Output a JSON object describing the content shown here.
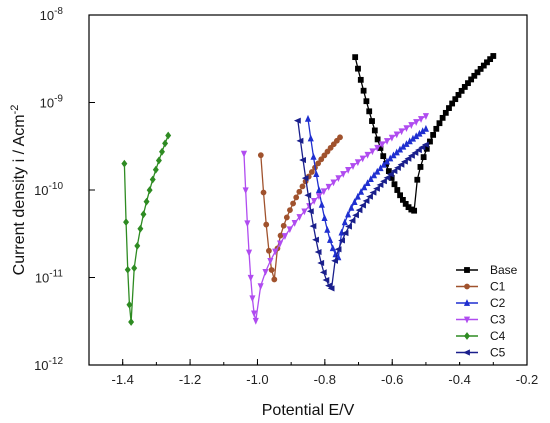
{
  "chart_data": {
    "type": "line",
    "xlabel": "Potential E/V",
    "ylabel": "Current density i / Acm",
    "ylabel_sup": "-2",
    "x_scale": "linear",
    "y_scale": "log",
    "xlim": [
      -1.5,
      -0.2
    ],
    "ylim": [
      1e-12,
      1e-08
    ],
    "x_ticks": [
      {
        "value": -1.4,
        "label": "-1.4"
      },
      {
        "value": -1.2,
        "label": "-1.2"
      },
      {
        "value": -1.0,
        "label": "-1.0"
      },
      {
        "value": -0.8,
        "label": "-0.8"
      },
      {
        "value": -0.6,
        "label": "-0.6"
      },
      {
        "value": -0.4,
        "label": "-0.4"
      },
      {
        "value": -0.2,
        "label": "-0.2"
      }
    ],
    "y_ticks": [
      {
        "value": 1e-12,
        "base": "10",
        "exp": "-12"
      },
      {
        "value": 1e-11,
        "base": "10",
        "exp": "-11"
      },
      {
        "value": 1e-10,
        "base": "10",
        "exp": "-10"
      },
      {
        "value": 1e-09,
        "base": "10",
        "exp": "-9"
      },
      {
        "value": 1e-08,
        "base": "10",
        "exp": "-8"
      }
    ],
    "grid": false,
    "legend_position": "bottom-right",
    "series": [
      {
        "name": "Base",
        "color": "#000000",
        "marker": "square",
        "cathodic": {
          "e_start": -0.71,
          "i_start": 3.3e-09,
          "e_end": -0.535,
          "i_end": 5.8e-11,
          "n": 22
        },
        "anodic": {
          "e_start": -0.535,
          "i_start": 5.8e-11,
          "e_end": -0.3,
          "i_end": 3.4e-09,
          "n": 26
        }
      },
      {
        "name": "C1",
        "color": "#a0522d",
        "marker": "circle",
        "cathodic": {
          "e_start": -0.99,
          "i_start": 2.5e-10,
          "e_end": -0.95,
          "i_end": 9.5e-12,
          "n": 6
        },
        "anodic": {
          "e_start": -0.95,
          "i_start": 9.5e-12,
          "e_end": -0.755,
          "i_end": 4e-10,
          "n": 22
        }
      },
      {
        "name": "C2",
        "color": "#1f2fd0",
        "marker": "triangle-up",
        "cathodic": {
          "e_start": -0.85,
          "i_start": 6.5e-10,
          "e_end": -0.76,
          "i_end": 1.7e-11,
          "n": 12
        },
        "anodic": {
          "e_start": -0.76,
          "i_start": 1.7e-11,
          "e_end": -0.5,
          "i_end": 5e-10,
          "n": 28
        }
      },
      {
        "name": "C3",
        "color": "#b04cf0",
        "marker": "triangle-down",
        "cathodic": {
          "e_start": -1.04,
          "i_start": 2.6e-10,
          "e_end": -1.005,
          "i_end": 3.2e-12,
          "n": 8
        },
        "anodic": {
          "e_start": -1.005,
          "i_start": 3.2e-12,
          "e_end": -0.5,
          "i_end": 7e-10,
          "n": 36
        }
      },
      {
        "name": "C4",
        "color": "#2e8b22",
        "marker": "diamond",
        "cathodic": {
          "e_start": -1.395,
          "i_start": 2e-10,
          "e_end": -1.375,
          "i_end": 3.1e-12,
          "n": 5
        },
        "anodic": {
          "e_start": -1.375,
          "i_start": 3.1e-12,
          "e_end": -1.265,
          "i_end": 4.2e-10,
          "n": 13
        }
      },
      {
        "name": "C5",
        "color": "#1a1f8c",
        "marker": "triangle-left",
        "cathodic": {
          "e_start": -0.88,
          "i_start": 6.2e-10,
          "e_end": -0.78,
          "i_end": 7.5e-12,
          "n": 14
        },
        "anodic": {
          "e_start": -0.78,
          "i_start": 7.5e-12,
          "e_end": -0.5,
          "i_end": 3.3e-10,
          "n": 28
        }
      }
    ]
  }
}
